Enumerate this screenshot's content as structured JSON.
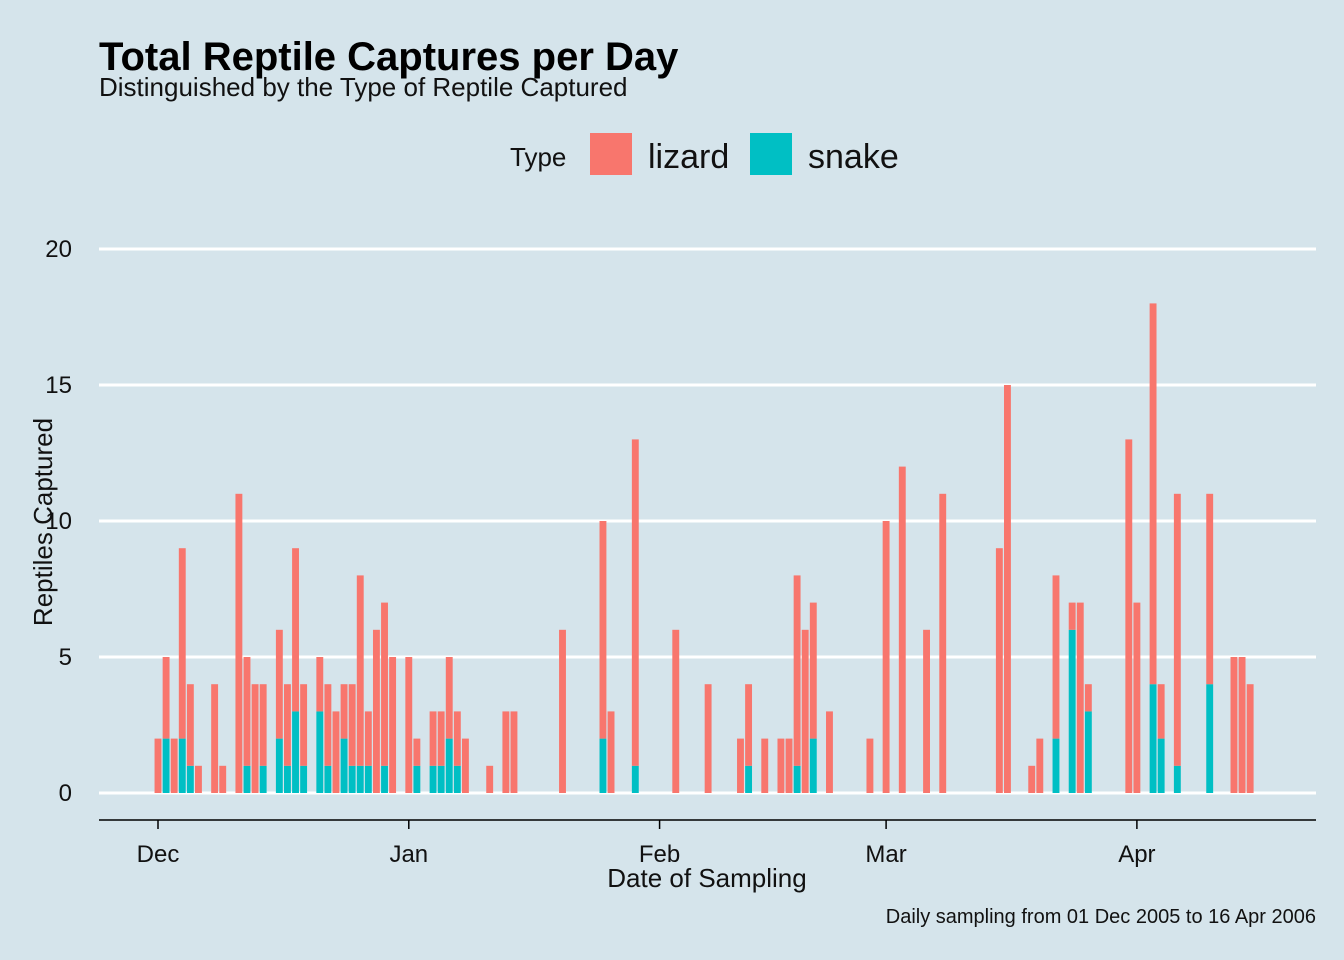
{
  "chart_data": {
    "type": "bar",
    "stacked": true,
    "title": "Total Reptile Captures per Day",
    "subtitle": "Distinguished by the Type of Reptile Captured",
    "xlabel": "Date of Sampling",
    "ylabel": "Reptiles Captured",
    "caption": "Daily sampling from 01 Dec 2005 to 16 Apr 2006",
    "legend": {
      "title": "Type",
      "position": "top"
    },
    "x_ticks": [
      {
        "label": "Dec",
        "day": 0
      },
      {
        "label": "Jan",
        "day": 31
      },
      {
        "label": "Feb",
        "day": 62
      },
      {
        "label": "Mar",
        "day": 90
      },
      {
        "label": "Apr",
        "day": 121
      }
    ],
    "ylim": [
      0,
      20
    ],
    "y_ticks": [
      0,
      5,
      10,
      15,
      20
    ],
    "grid": "horizontal-major",
    "series": [
      {
        "name": "lizard",
        "color": "#F8766D"
      },
      {
        "name": "snake",
        "color": "#00BFC4"
      }
    ],
    "days": [
      0,
      1,
      2,
      3,
      4,
      5,
      7,
      8,
      10,
      11,
      12,
      13,
      15,
      16,
      17,
      18,
      20,
      21,
      22,
      23,
      24,
      25,
      26,
      27,
      28,
      29,
      31,
      32,
      34,
      35,
      36,
      37,
      38,
      41,
      43,
      44,
      50,
      55,
      56,
      59,
      64,
      68,
      72,
      73,
      75,
      77,
      78,
      79,
      80,
      81,
      83,
      88,
      90,
      92,
      95,
      97,
      104,
      105,
      108,
      109,
      111,
      113,
      114,
      115,
      120,
      121,
      123,
      124,
      126,
      130,
      133,
      134,
      135
    ],
    "lizard": [
      2,
      3,
      2,
      7,
      3,
      1,
      4,
      1,
      11,
      4,
      4,
      3,
      4,
      3,
      6,
      3,
      2,
      3,
      3,
      2,
      3,
      7,
      2,
      6,
      6,
      5,
      5,
      1,
      2,
      2,
      3,
      2,
      2,
      1,
      3,
      3,
      6,
      8,
      3,
      12,
      6,
      4,
      2,
      3,
      2,
      2,
      2,
      7,
      6,
      5,
      3,
      2,
      10,
      12,
      6,
      11,
      9,
      15,
      1,
      2,
      6,
      1,
      7,
      1,
      13,
      7,
      14,
      2,
      10,
      7,
      5,
      5,
      4
    ],
    "snake": [
      0,
      2,
      0,
      2,
      1,
      0,
      0,
      0,
      0,
      1,
      0,
      1,
      2,
      1,
      3,
      1,
      3,
      1,
      0,
      2,
      1,
      1,
      1,
      0,
      1,
      0,
      0,
      1,
      1,
      1,
      2,
      1,
      0,
      0,
      0,
      0,
      0,
      2,
      0,
      1,
      0,
      0,
      0,
      1,
      0,
      0,
      0,
      1,
      0,
      2,
      0,
      0,
      0,
      0,
      0,
      0,
      0,
      0,
      0,
      0,
      2,
      6,
      0,
      3,
      0,
      0,
      4,
      2,
      1,
      4,
      0,
      0,
      0
    ]
  }
}
